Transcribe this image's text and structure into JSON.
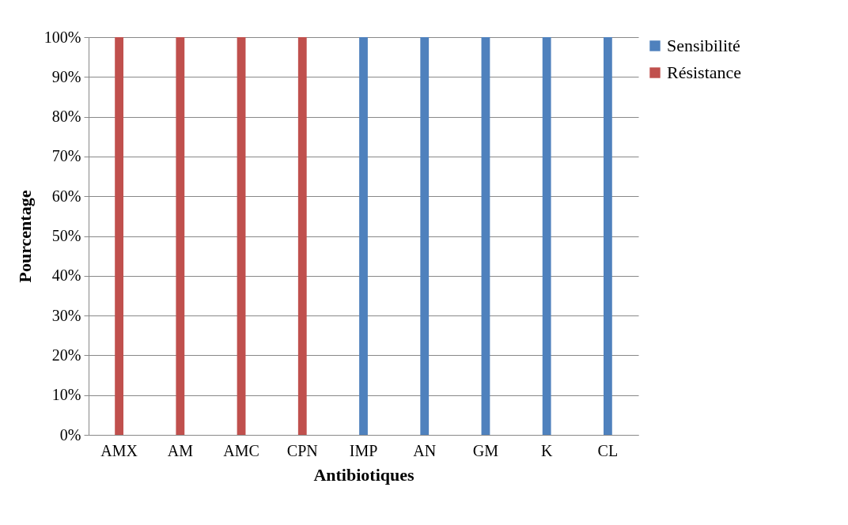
{
  "chart_data": {
    "type": "bar",
    "stacked": true,
    "xlabel": "Antibiotiques",
    "ylabel": "Pourcentage",
    "categories": [
      "AMX",
      "AM",
      "AMC",
      "CPN",
      "IMP",
      "AN",
      "GM",
      "K",
      "CL"
    ],
    "series": [
      {
        "name": "Sensibilité",
        "color": "#4f81bd",
        "values": [
          0,
          0,
          0,
          0,
          100,
          100,
          100,
          100,
          100
        ]
      },
      {
        "name": "Résistance",
        "color": "#c0504d",
        "values": [
          100,
          100,
          100,
          100,
          0,
          0,
          0,
          0,
          0
        ]
      }
    ],
    "ylim": [
      0,
      100
    ],
    "yticks": [
      {
        "value": 0,
        "label": "0%"
      },
      {
        "value": 10,
        "label": "10%"
      },
      {
        "value": 20,
        "label": "20%"
      },
      {
        "value": 30,
        "label": "30%"
      },
      {
        "value": 40,
        "label": "40%"
      },
      {
        "value": 50,
        "label": "50%"
      },
      {
        "value": 60,
        "label": "60%"
      },
      {
        "value": 70,
        "label": "70%"
      },
      {
        "value": 80,
        "label": "80%"
      },
      {
        "value": 90,
        "label": "90%"
      },
      {
        "value": 100,
        "label": "100%"
      }
    ],
    "grid": "y",
    "legend": "right"
  }
}
